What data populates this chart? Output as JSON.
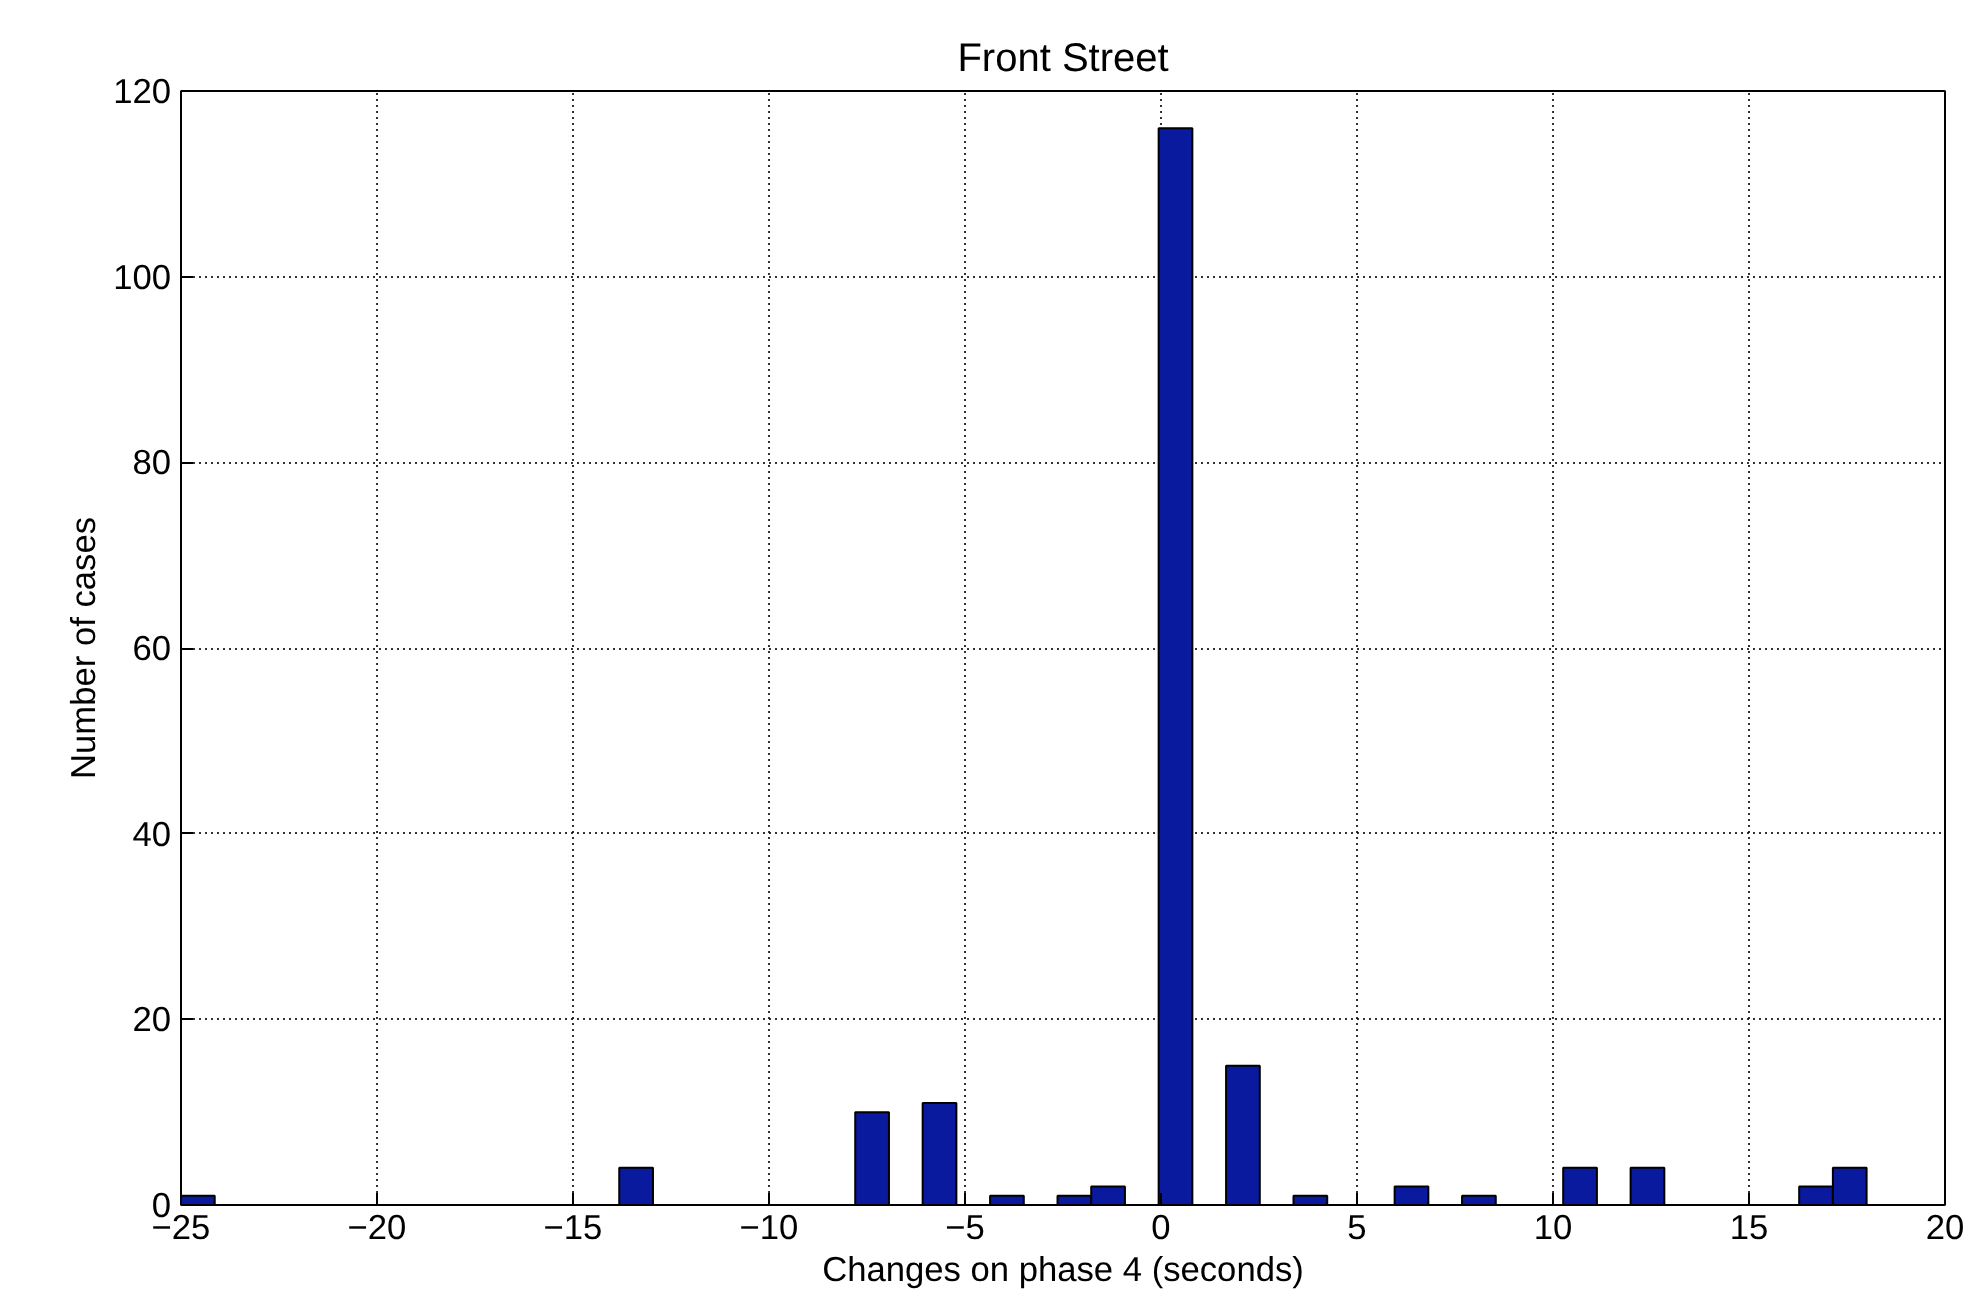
{
  "chart_data": {
    "type": "histogram",
    "title": "Front Street",
    "xlabel": "Changes on phase 4 (seconds)",
    "ylabel": "Number of cases",
    "bins": [
      -25,
      -24.14,
      -23.28,
      -22.42,
      -21.56,
      -20.7,
      -19.84,
      -18.98,
      -18.12,
      -17.26,
      -16.4,
      -15.54,
      -14.68,
      -13.82,
      -12.96,
      -12.1,
      -11.24,
      -10.38,
      -9.52,
      -8.66,
      -7.8,
      -6.94,
      -6.08,
      -5.22,
      -4.36,
      -3.5,
      -2.64,
      -1.78,
      -0.92,
      -0.06,
      0.8,
      1.66,
      2.52,
      3.38,
      4.24,
      5.1,
      5.96,
      6.82,
      7.68,
      8.54,
      9.4,
      10.26,
      11.12,
      11.98,
      12.84,
      13.7,
      14.56,
      15.42,
      16.28,
      17.14,
      18
    ],
    "values": [
      1,
      0,
      0,
      0,
      0,
      0,
      0,
      0,
      0,
      0,
      0,
      0,
      0,
      4,
      0,
      0,
      0,
      0,
      0,
      0,
      10,
      0,
      11,
      0,
      1,
      0,
      1,
      2,
      0,
      116,
      0,
      15,
      0,
      1,
      0,
      0,
      2,
      0,
      1,
      0,
      0,
      4,
      0,
      4,
      0,
      0,
      0,
      0,
      2,
      4
    ],
    "color": "#0a1a9e",
    "xlim": [
      -25,
      20
    ],
    "ylim": [
      0,
      120
    ],
    "xticks": [
      -25,
      -20,
      -15,
      -10,
      -5,
      0,
      5,
      10,
      15,
      20
    ],
    "yticks": [
      0,
      20,
      40,
      60,
      80,
      100,
      120
    ],
    "grid": true
  }
}
